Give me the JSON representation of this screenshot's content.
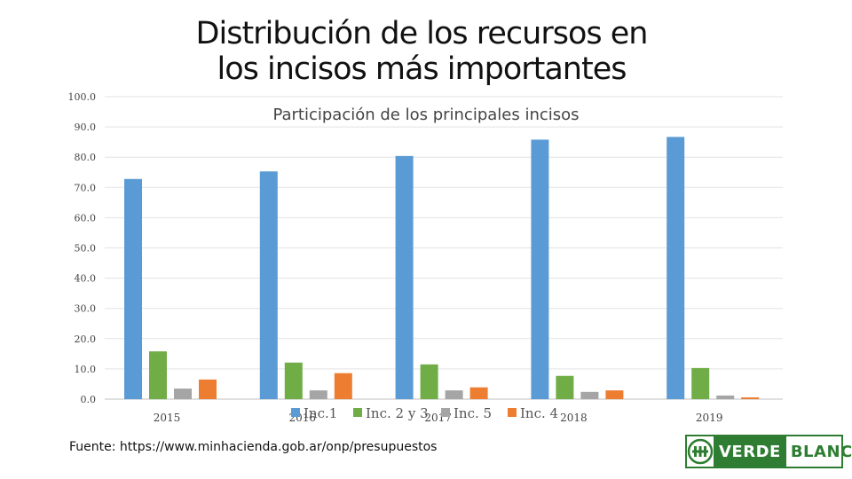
{
  "page": {
    "title_line1": "Distribución de los recursos en",
    "title_line2": "los incisos más importantes",
    "source": "Fuente: https://www.minhacienda.gob.ar/onp/presupuestos",
    "logo": {
      "verde": "VERDE",
      "blanca": "BLANCA",
      "emblem": "ATE"
    }
  },
  "chart_data": {
    "type": "bar",
    "title": "Participación de los principales incisos",
    "categories": [
      "2015",
      "2016",
      "2017",
      "2018",
      "2019"
    ],
    "series": [
      {
        "name": "Inc.1",
        "color": "#5b9bd5",
        "values": [
          72.8,
          75.3,
          80.4,
          85.8,
          86.7
        ]
      },
      {
        "name": "Inc. 2 y 3",
        "color": "#70ad47",
        "values": [
          15.8,
          12.1,
          11.5,
          7.7,
          10.3
        ]
      },
      {
        "name": "Inc. 5",
        "color": "#a5a5a5",
        "values": [
          3.5,
          2.9,
          2.9,
          2.4,
          1.2
        ]
      },
      {
        "name": "Inc. 4",
        "color": "#ed7d31",
        "values": [
          6.5,
          8.6,
          3.9,
          2.9,
          0.6
        ]
      }
    ],
    "yticks": [
      "0.0",
      "10.0",
      "20.0",
      "30.0",
      "40.0",
      "50.0",
      "60.0",
      "70.0",
      "80.0",
      "90.0",
      "100.0"
    ],
    "ylim": [
      0,
      100
    ],
    "grid": true,
    "legend_position": "bottom"
  }
}
